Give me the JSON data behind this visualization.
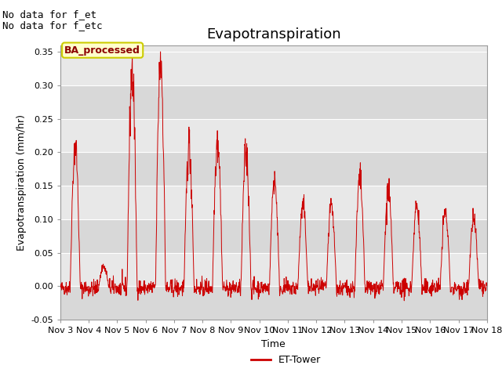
{
  "title": "Evapotranspiration",
  "ylabel": "Evapotranspiration (mm/hr)",
  "xlabel": "Time",
  "legend_label": "ET-Tower",
  "legend_color": "#cc0000",
  "line_color": "#cc0000",
  "fig_bg_color": "#ffffff",
  "plot_bg_color": "#e8e8e8",
  "ylim": [
    -0.05,
    0.36
  ],
  "yticks": [
    -0.05,
    0.0,
    0.05,
    0.1,
    0.15,
    0.2,
    0.25,
    0.3,
    0.35
  ],
  "note1": "No data for f_et",
  "note2": "No data for f_etc",
  "box_label": "BA_processed",
  "title_fontsize": 13,
  "label_fontsize": 9,
  "tick_fontsize": 8,
  "note_fontsize": 9,
  "daily_peaks": [
    0.21,
    0.03,
    0.32,
    0.34,
    0.21,
    0.22,
    0.2,
    0.16,
    0.12,
    0.12,
    0.16,
    0.14,
    0.12,
    0.11,
    0.1
  ]
}
